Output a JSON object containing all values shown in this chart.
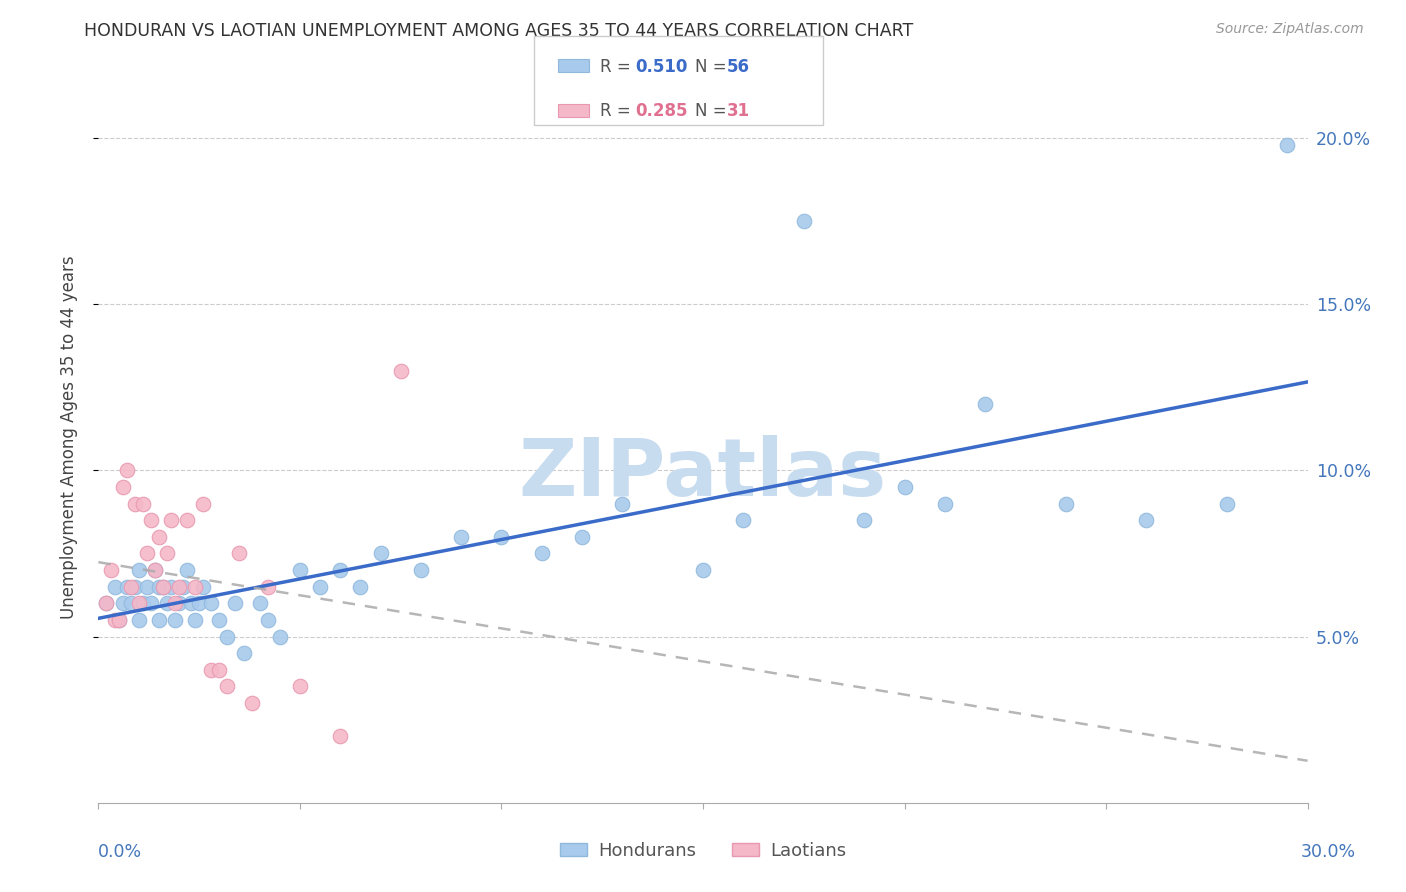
{
  "title": "HONDURAN VS LAOTIAN UNEMPLOYMENT AMONG AGES 35 TO 44 YEARS CORRELATION CHART",
  "source": "Source: ZipAtlas.com",
  "ylabel": "Unemployment Among Ages 35 to 44 years",
  "xlim": [
    0.0,
    0.3
  ],
  "ylim": [
    0.0,
    0.22
  ],
  "yticks": [
    0.05,
    0.1,
    0.15,
    0.2
  ],
  "ytick_labels": [
    "5.0%",
    "10.0%",
    "15.0%",
    "20.0%"
  ],
  "honduran_R": "0.510",
  "honduran_N": "56",
  "laotian_R": "0.285",
  "laotian_N": "31",
  "honduran_color": "#A8CAEC",
  "laotian_color": "#F5B8C8",
  "honduran_line_color": "#3B6BC8",
  "laotian_line_color": "#AAAAAA",
  "honduran_x": [
    0.002,
    0.004,
    0.005,
    0.006,
    0.007,
    0.008,
    0.009,
    0.01,
    0.01,
    0.011,
    0.012,
    0.013,
    0.014,
    0.015,
    0.015,
    0.016,
    0.017,
    0.018,
    0.019,
    0.02,
    0.021,
    0.022,
    0.023,
    0.024,
    0.025,
    0.026,
    0.028,
    0.03,
    0.032,
    0.034,
    0.036,
    0.04,
    0.042,
    0.045,
    0.05,
    0.055,
    0.06,
    0.065,
    0.07,
    0.08,
    0.09,
    0.1,
    0.11,
    0.12,
    0.13,
    0.15,
    0.16,
    0.175,
    0.19,
    0.2,
    0.21,
    0.22,
    0.24,
    0.26,
    0.28,
    0.295
  ],
  "honduran_y": [
    0.06,
    0.065,
    0.055,
    0.06,
    0.065,
    0.06,
    0.065,
    0.07,
    0.055,
    0.06,
    0.065,
    0.06,
    0.07,
    0.065,
    0.055,
    0.065,
    0.06,
    0.065,
    0.055,
    0.06,
    0.065,
    0.07,
    0.06,
    0.055,
    0.06,
    0.065,
    0.06,
    0.055,
    0.05,
    0.06,
    0.045,
    0.06,
    0.055,
    0.05,
    0.07,
    0.065,
    0.07,
    0.065,
    0.075,
    0.07,
    0.08,
    0.08,
    0.075,
    0.08,
    0.09,
    0.07,
    0.085,
    0.175,
    0.085,
    0.095,
    0.09,
    0.12,
    0.09,
    0.085,
    0.09,
    0.198
  ],
  "laotian_x": [
    0.002,
    0.003,
    0.004,
    0.005,
    0.006,
    0.007,
    0.008,
    0.009,
    0.01,
    0.011,
    0.012,
    0.013,
    0.014,
    0.015,
    0.016,
    0.017,
    0.018,
    0.019,
    0.02,
    0.022,
    0.024,
    0.026,
    0.028,
    0.03,
    0.032,
    0.035,
    0.038,
    0.042,
    0.05,
    0.06,
    0.075
  ],
  "laotian_y": [
    0.06,
    0.07,
    0.055,
    0.055,
    0.095,
    0.1,
    0.065,
    0.09,
    0.06,
    0.09,
    0.075,
    0.085,
    0.07,
    0.08,
    0.065,
    0.075,
    0.085,
    0.06,
    0.065,
    0.085,
    0.065,
    0.09,
    0.04,
    0.04,
    0.035,
    0.075,
    0.03,
    0.065,
    0.035,
    0.02,
    0.13
  ],
  "watermark_text": "ZIPatlas",
  "watermark_color": "#C8DCF0",
  "legend_honduran_label": "Hondurans",
  "legend_laotian_label": "Laotians"
}
